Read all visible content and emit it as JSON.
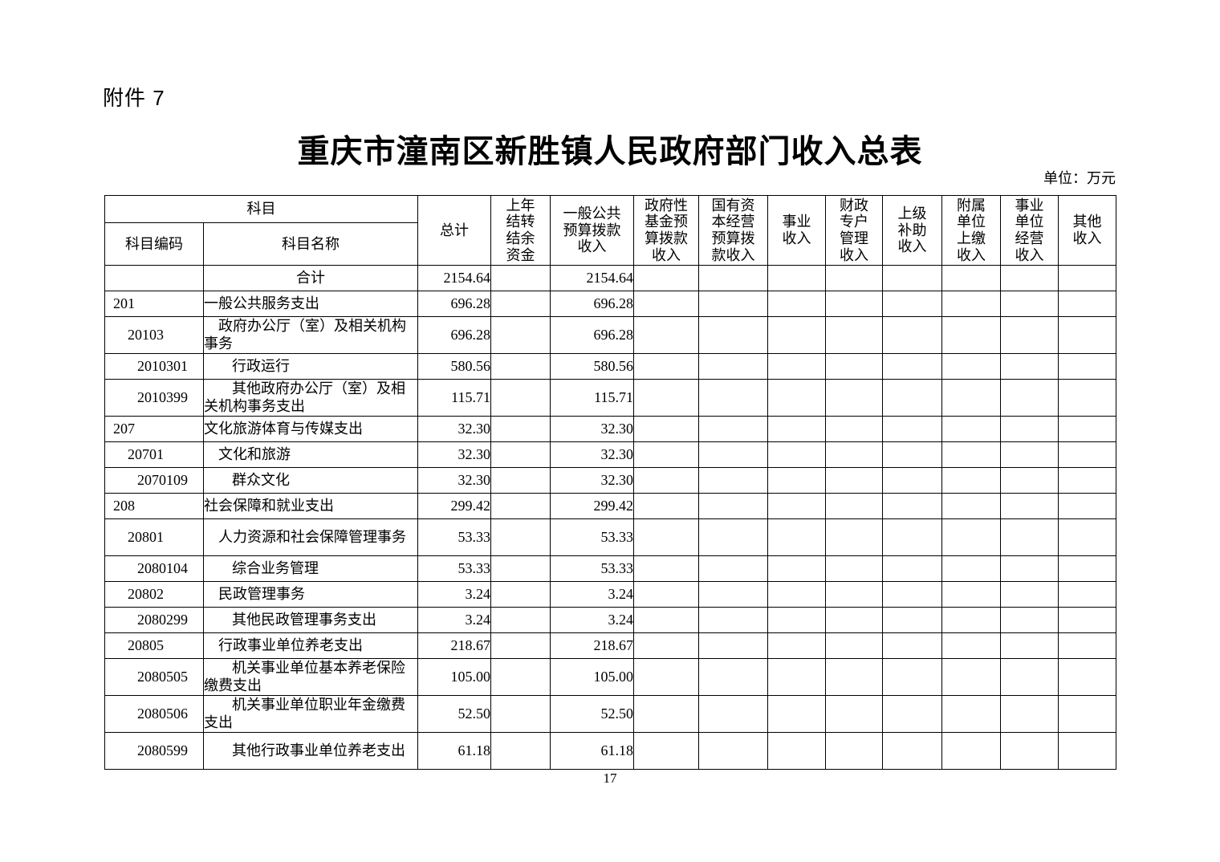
{
  "page": {
    "attachment_label": "附件 7",
    "title": "重庆市潼南区新胜镇人民政府部门收入总表",
    "unit_note": "单位：万元",
    "page_number": "17"
  },
  "table": {
    "header": {
      "subject_group": "科目",
      "subject_code": "科目编码",
      "subject_name": "科目名称",
      "total": "总计",
      "carryover": "上年\n结转\n结余\n资金",
      "general_budget": "一般公共\n预算拨款\n收入",
      "gov_fund": "政府性\n基金预\n算拨款\n收入",
      "state_capital": "国有资\n本经营\n预算拨\n款收入",
      "business_income": "事业\n收入",
      "fiscal_account": "财政\n专户\n管理\n收入",
      "superior_subsidy": "上级\n补助\n收入",
      "affiliated_upturn": "附属\n单位\n上缴\n收入",
      "business_operation": "事业\n单位\n经营\n收入",
      "other_income": "其他\n收入"
    },
    "empty_column_keys": [
      "carryover",
      "gov_fund",
      "state_capital",
      "business_income",
      "fiscal_account",
      "superior_subsidy",
      "affiliated_upturn",
      "business_operation",
      "other_income"
    ],
    "rows": [
      {
        "code": "",
        "name": "合计",
        "level": 0,
        "tall": false,
        "total": "2154.64",
        "general_budget": "2154.64"
      },
      {
        "code": "201",
        "name": "一般公共服务支出",
        "level": 1,
        "tall": false,
        "total": "696.28",
        "general_budget": "696.28"
      },
      {
        "code": "20103",
        "name": "政府办公厅（室）及相关机构事务",
        "level": 2,
        "tall": true,
        "total": "696.28",
        "general_budget": "696.28"
      },
      {
        "code": "2010301",
        "name": "行政运行",
        "level": 3,
        "tall": false,
        "total": "580.56",
        "general_budget": "580.56"
      },
      {
        "code": "2010399",
        "name": "其他政府办公厅（室）及相关机构事务支出",
        "level": 3,
        "tall": true,
        "total": "115.71",
        "general_budget": "115.71"
      },
      {
        "code": "207",
        "name": "文化旅游体育与传媒支出",
        "level": 1,
        "tall": false,
        "total": "32.30",
        "general_budget": "32.30"
      },
      {
        "code": "20701",
        "name": "文化和旅游",
        "level": 2,
        "tall": false,
        "total": "32.30",
        "general_budget": "32.30"
      },
      {
        "code": "2070109",
        "name": "群众文化",
        "level": 3,
        "tall": false,
        "total": "32.30",
        "general_budget": "32.30"
      },
      {
        "code": "208",
        "name": "社会保障和就业支出",
        "level": 1,
        "tall": false,
        "total": "299.42",
        "general_budget": "299.42"
      },
      {
        "code": "20801",
        "name": "人力资源和社会保障管理事务",
        "level": 2,
        "tall": true,
        "total": "53.33",
        "general_budget": "53.33"
      },
      {
        "code": "2080104",
        "name": "综合业务管理",
        "level": 3,
        "tall": false,
        "total": "53.33",
        "general_budget": "53.33"
      },
      {
        "code": "20802",
        "name": "民政管理事务",
        "level": 2,
        "tall": false,
        "total": "3.24",
        "general_budget": "3.24"
      },
      {
        "code": "2080299",
        "name": "其他民政管理事务支出",
        "level": 3,
        "tall": false,
        "total": "3.24",
        "general_budget": "3.24"
      },
      {
        "code": "20805",
        "name": "行政事业单位养老支出",
        "level": 2,
        "tall": false,
        "total": "218.67",
        "general_budget": "218.67"
      },
      {
        "code": "2080505",
        "name": "机关事业单位基本养老保险缴费支出",
        "level": 3,
        "tall": true,
        "total": "105.00",
        "general_budget": "105.00"
      },
      {
        "code": "2080506",
        "name": "机关事业单位职业年金缴费支出",
        "level": 3,
        "tall": true,
        "total": "52.50",
        "general_budget": "52.50"
      },
      {
        "code": "2080599",
        "name": "其他行政事业单位养老支出",
        "level": 3,
        "tall": true,
        "total": "61.18",
        "general_budget": "61.18"
      }
    ]
  }
}
